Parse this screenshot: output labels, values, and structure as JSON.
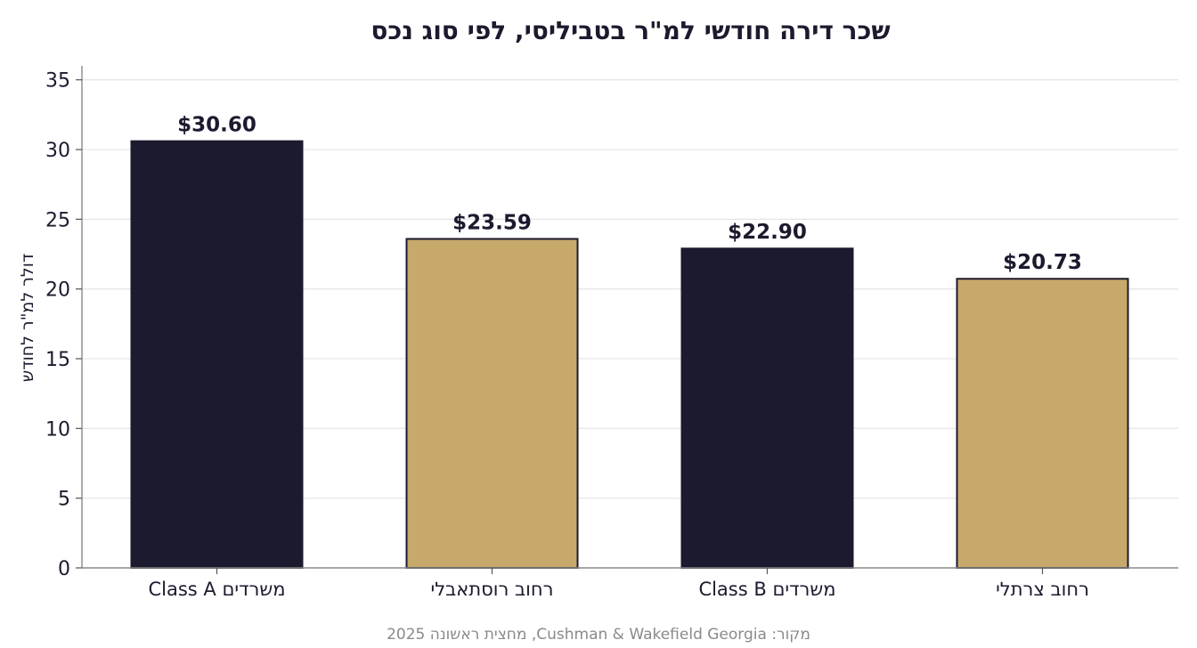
{
  "chart_data": {
    "type": "bar",
    "title": "שכר דירה חודשי למ\"ר בטביליסי, לפי סוג נכס",
    "ylabel": "דולר למ\"ר לחודש",
    "xlabel": "",
    "categories": [
      "משרדים Class A",
      "רחוב רוסתאבלי",
      "משרדים Class B",
      "רחוב צרתלי"
    ],
    "values": [
      30.6,
      23.59,
      22.9,
      20.73
    ],
    "data_labels": [
      "$30.60",
      "$23.59",
      "$22.90",
      "$20.73"
    ],
    "ylim": [
      0,
      36
    ],
    "yticks": [
      0,
      5,
      10,
      15,
      20,
      25,
      30,
      35
    ],
    "grid": true,
    "bar_colors": [
      "#1c1a2e",
      "#c8a96c",
      "#1c1a2e",
      "#c8a96c"
    ],
    "source": "מקור: Cushman & Wakefield Georgia, מחצית ראשונה 2025"
  }
}
